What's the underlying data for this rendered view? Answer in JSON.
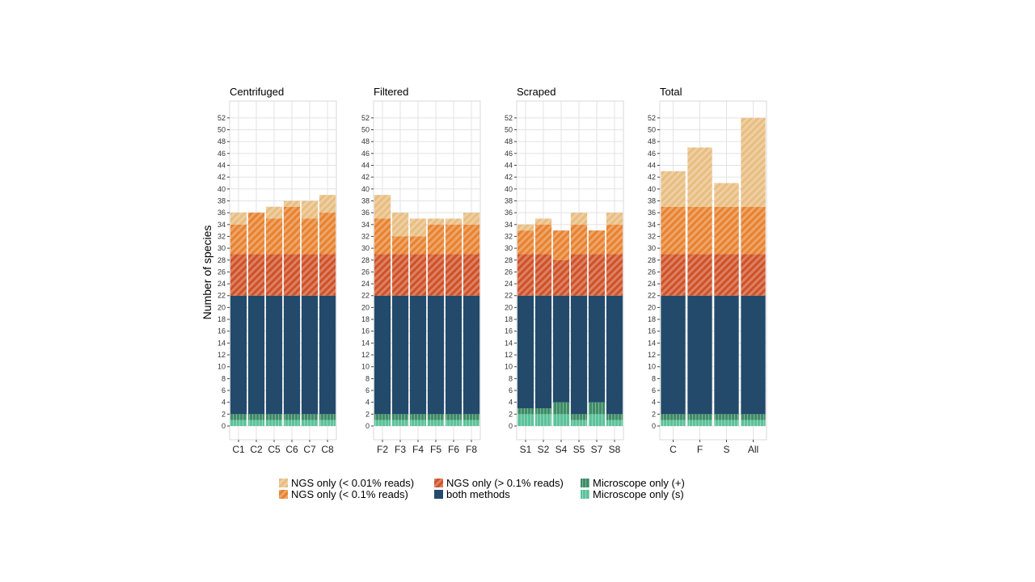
{
  "ylabel": "Number of species",
  "colors": {
    "NGS only (< 0.01% reads)": "#e8bd80",
    "NGS only (< 0.1% reads)": "#e8822f",
    "NGS only (> 0.1% reads)": "#cf5127",
    "both methods": "#234a6b",
    "Microscope only (+)": "#3e8c66",
    "Microscope only (s)": "#5cc29a"
  },
  "legend": [
    {
      "label": "NGS only (< 0.01% reads)",
      "hatch": true
    },
    {
      "label": "NGS only (< 0.1% reads)",
      "hatch": true
    },
    {
      "label": "NGS only (> 0.1% reads)",
      "hatch": true
    },
    {
      "label": "both methods",
      "hatch": false
    },
    {
      "label": "Microscope only (+)",
      "hatch": false
    },
    {
      "label": "Microscope only (s)",
      "hatch": false
    }
  ],
  "chart_data": [
    {
      "type": "bar",
      "stacked": true,
      "title": "Centrifuged",
      "categories": [
        "C1",
        "C2",
        "C5",
        "C6",
        "C7",
        "C8"
      ],
      "ylim": [
        0,
        53
      ],
      "yticks_step": 2,
      "grid": true,
      "series": [
        {
          "name": "Microscope only (s)",
          "values": [
            1,
            1,
            1,
            1,
            1,
            1
          ]
        },
        {
          "name": "Microscope only (+)",
          "values": [
            1,
            1,
            1,
            1,
            1,
            1
          ]
        },
        {
          "name": "both methods",
          "values": [
            20,
            20,
            20,
            20,
            20,
            20
          ]
        },
        {
          "name": "NGS only (> 0.1% reads)",
          "values": [
            7,
            7,
            7,
            7,
            7,
            7
          ]
        },
        {
          "name": "NGS only (< 0.1% reads)",
          "values": [
            5,
            7,
            6,
            8,
            6,
            7
          ]
        },
        {
          "name": "NGS only (< 0.01% reads)",
          "values": [
            2,
            0,
            2,
            1,
            3,
            3
          ]
        }
      ]
    },
    {
      "type": "bar",
      "stacked": true,
      "title": "Filtered",
      "categories": [
        "F2",
        "F3",
        "F4",
        "F5",
        "F6",
        "F8"
      ],
      "ylim": [
        0,
        53
      ],
      "yticks_step": 2,
      "grid": true,
      "series": [
        {
          "name": "Microscope only (s)",
          "values": [
            1,
            1,
            1,
            1,
            1,
            1
          ]
        },
        {
          "name": "Microscope only (+)",
          "values": [
            1,
            1,
            1,
            1,
            1,
            1
          ]
        },
        {
          "name": "both methods",
          "values": [
            20,
            20,
            20,
            20,
            20,
            20
          ]
        },
        {
          "name": "NGS only (> 0.1% reads)",
          "values": [
            7,
            7,
            7,
            7,
            7,
            7
          ]
        },
        {
          "name": "NGS only (< 0.1% reads)",
          "values": [
            6,
            3,
            3,
            5,
            5,
            5
          ]
        },
        {
          "name": "NGS only (< 0.01% reads)",
          "values": [
            4,
            4,
            3,
            1,
            1,
            2
          ]
        }
      ]
    },
    {
      "type": "bar",
      "stacked": true,
      "title": "Scraped",
      "categories": [
        "S1",
        "S2",
        "S4",
        "S5",
        "S7",
        "S8"
      ],
      "ylim": [
        0,
        53
      ],
      "yticks_step": 2,
      "grid": true,
      "series": [
        {
          "name": "Microscope only (s)",
          "values": [
            2,
            2,
            2,
            1,
            2,
            1
          ]
        },
        {
          "name": "Microscope only (+)",
          "values": [
            1,
            1,
            2,
            1,
            2,
            1
          ]
        },
        {
          "name": "both methods",
          "values": [
            19,
            19,
            18,
            20,
            18,
            20
          ]
        },
        {
          "name": "NGS only (> 0.1% reads)",
          "values": [
            7,
            7,
            6,
            7,
            7,
            7
          ]
        },
        {
          "name": "NGS only (< 0.1% reads)",
          "values": [
            4,
            5,
            5,
            5,
            4,
            5
          ]
        },
        {
          "name": "NGS only (< 0.01% reads)",
          "values": [
            1,
            1,
            0,
            2,
            0,
            2
          ]
        }
      ]
    },
    {
      "type": "bar",
      "stacked": true,
      "title": "Total",
      "categories": [
        "C",
        "F",
        "S",
        "All"
      ],
      "ylim": [
        0,
        53
      ],
      "yticks_step": 2,
      "grid": true,
      "series": [
        {
          "name": "Microscope only (s)",
          "values": [
            1,
            1,
            1,
            1
          ]
        },
        {
          "name": "Microscope only (+)",
          "values": [
            1,
            1,
            1,
            1
          ]
        },
        {
          "name": "both methods",
          "values": [
            20,
            20,
            20,
            20
          ]
        },
        {
          "name": "NGS only (> 0.1% reads)",
          "values": [
            7,
            7,
            7,
            7
          ]
        },
        {
          "name": "NGS only (< 0.1% reads)",
          "values": [
            8,
            8,
            8,
            8
          ]
        },
        {
          "name": "NGS only (< 0.01% reads)",
          "values": [
            6,
            10,
            4,
            15
          ]
        }
      ]
    }
  ]
}
